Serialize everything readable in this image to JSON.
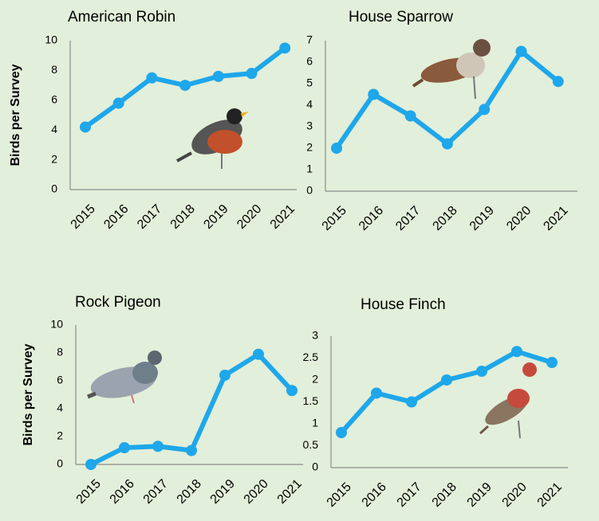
{
  "chart_data": [
    {
      "type": "line",
      "title": "American Robin",
      "y_label": "Birds per Survey",
      "categories": [
        "2015",
        "2016",
        "2017",
        "2018",
        "2019",
        "2020",
        "2021"
      ],
      "values": [
        4.2,
        5.8,
        7.5,
        7.0,
        7.6,
        7.8,
        9.5
      ],
      "color": "#1ea7ea",
      "ylim": [
        0,
        10
      ],
      "yticks": [
        0,
        2,
        4,
        6,
        8,
        10
      ]
    },
    {
      "type": "line",
      "title": "House Sparrow",
      "categories": [
        "2015",
        "2016",
        "2017",
        "2018",
        "2019",
        "2020",
        "2021"
      ],
      "values": [
        2.0,
        4.5,
        3.5,
        2.2,
        3.8,
        6.5,
        5.1
      ],
      "color": "#1ea7ea",
      "ylim": [
        0,
        7
      ],
      "yticks": [
        0,
        1,
        2,
        3,
        4,
        5,
        6,
        7
      ]
    },
    {
      "type": "line",
      "title": "Rock Pigeon",
      "y_label": "Birds per Survey",
      "categories": [
        "2015",
        "2016",
        "2017",
        "2018",
        "2019",
        "2020",
        "2021"
      ],
      "values": [
        0,
        1.2,
        1.3,
        1.0,
        6.4,
        7.9,
        5.3
      ],
      "color": "#1ea7ea",
      "ylim": [
        0,
        10
      ],
      "yticks": [
        0,
        2,
        4,
        6,
        8,
        10
      ]
    },
    {
      "type": "line",
      "title": "House Finch",
      "categories": [
        "2015",
        "2016",
        "2017",
        "2018",
        "2019",
        "2020",
        "2021"
      ],
      "values": [
        0.8,
        1.7,
        1.5,
        2.0,
        2.2,
        2.65,
        2.4
      ],
      "color": "#1ea7ea",
      "ylim": [
        0,
        3
      ],
      "yticks": [
        0,
        0.5,
        1,
        1.5,
        2,
        2.5,
        3
      ]
    }
  ]
}
